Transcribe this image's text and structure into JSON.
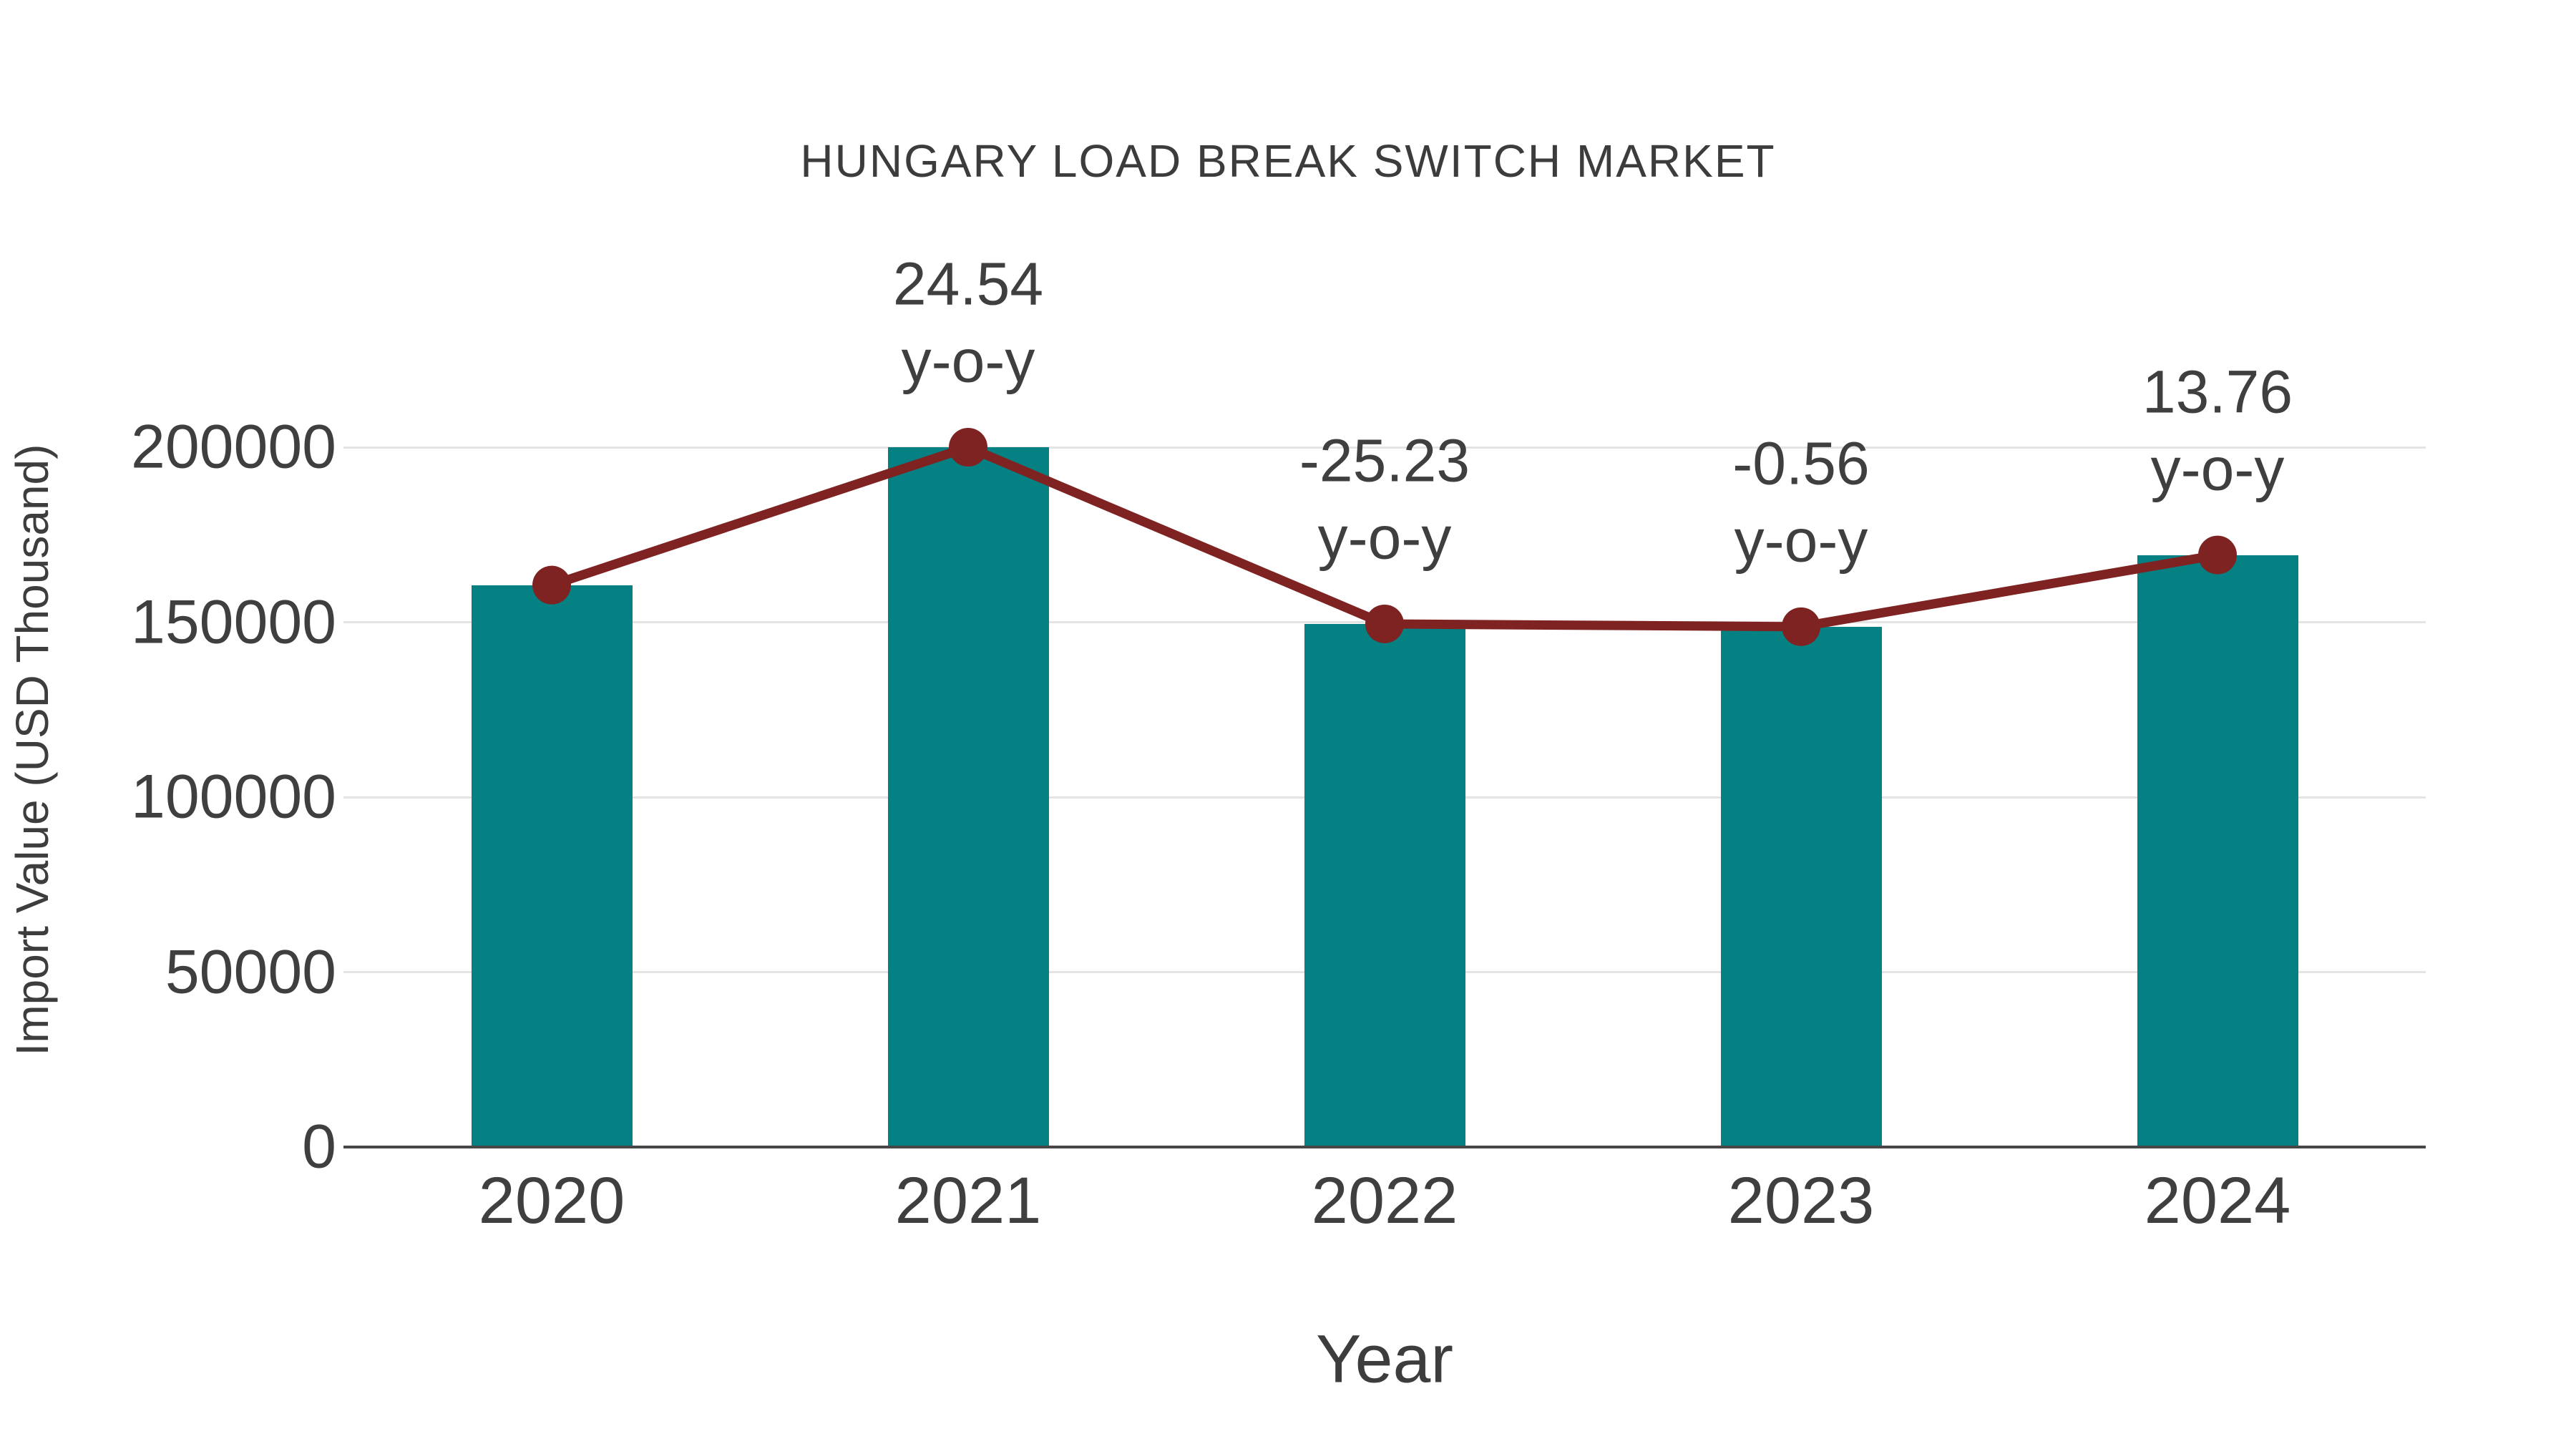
{
  "chart": {
    "title": "HUNGARY LOAD BREAK SWITCH MARKET",
    "xlabel": "Year",
    "ylabel": "Import Value (USD Thousand)"
  },
  "chart_data": {
    "type": "bar",
    "title": "HUNGARY LOAD BREAK SWITCH MARKET",
    "xlabel": "Year",
    "ylabel": "Import Value (USD Thousand)",
    "categories": [
      "2020",
      "2021",
      "2022",
      "2023",
      "2024"
    ],
    "series": [
      {
        "name": "Import Value (USD Thousand)",
        "type": "bar",
        "values": [
          160600,
          200000,
          149500,
          148700,
          169200
        ]
      },
      {
        "name": "Import Value trend",
        "type": "line",
        "values": [
          160600,
          200000,
          149500,
          148700,
          169200
        ]
      }
    ],
    "yoy_percent": [
      null,
      24.54,
      -25.23,
      -0.56,
      13.76
    ],
    "annotations": [
      {
        "category": "2021",
        "line1": "24.54",
        "line2": "y-o-y"
      },
      {
        "category": "2022",
        "line1": "-25.23",
        "line2": "y-o-y"
      },
      {
        "category": "2023",
        "line1": "-0.56",
        "line2": "y-o-y"
      },
      {
        "category": "2024",
        "line1": "13.76",
        "line2": "y-o-y"
      }
    ],
    "yticks": [
      0,
      50000,
      100000,
      150000,
      200000
    ],
    "ylim": [
      0,
      200000
    ],
    "grid": "horizontal-light",
    "legend": "none",
    "colors": {
      "bar": "#058083",
      "line": "#7e2322",
      "marker": "#7e2322",
      "text": "#3f3f3f",
      "title_text": "#3c3c3c",
      "axis_line": "#474747",
      "gridline": "#e4e4e4",
      "background": "#ffffff"
    }
  }
}
